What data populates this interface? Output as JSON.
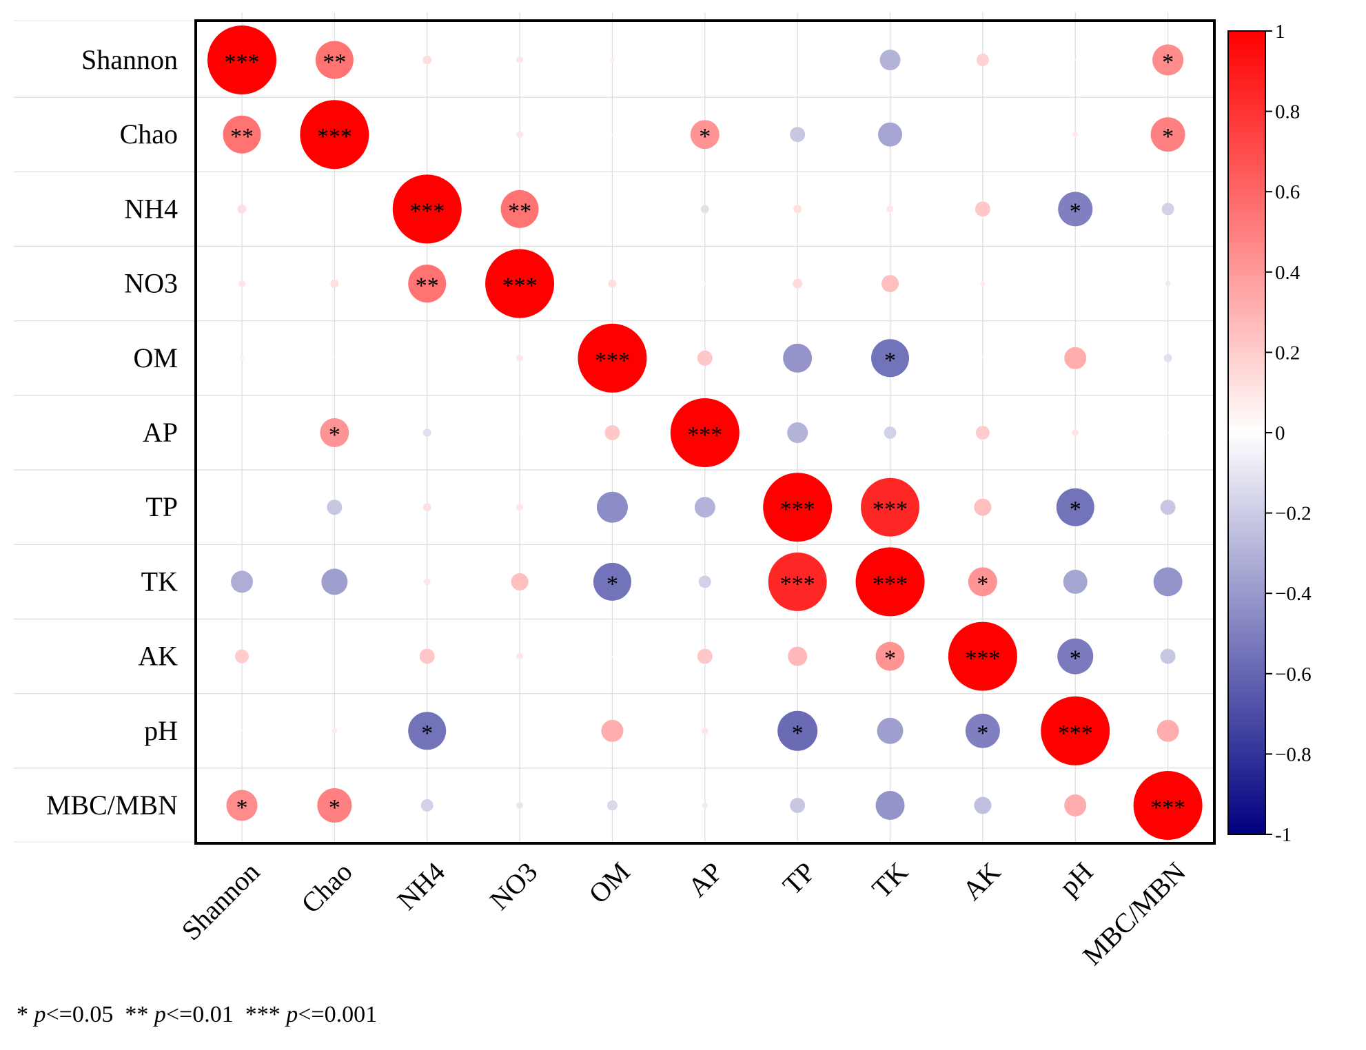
{
  "chart_data": {
    "type": "heatmap",
    "subtype": "correlation-circles",
    "variables": [
      "Shannon",
      "Chao",
      "NH4",
      "NO3",
      "OM",
      "AP",
      "TP",
      "TK",
      "AK",
      "pH",
      "MBC/MBN"
    ],
    "matrix": [
      [
        1.0,
        0.55,
        0.13,
        0.1,
        0.07,
        0.0,
        0.0,
        -0.3,
        0.18,
        0.02,
        0.45
      ],
      [
        0.55,
        1.0,
        0.0,
        0.1,
        0.02,
        0.42,
        -0.22,
        -0.35,
        0.0,
        0.08,
        0.5
      ],
      [
        0.13,
        0.0,
        1.0,
        0.55,
        0.01,
        -0.12,
        0.12,
        0.1,
        0.22,
        -0.5,
        -0.18
      ],
      [
        0.1,
        0.12,
        0.55,
        1.0,
        0.12,
        -0.04,
        0.14,
        0.25,
        0.07,
        -0.01,
        -0.08
      ],
      [
        0.06,
        0.02,
        0.01,
        0.1,
        1.0,
        0.22,
        -0.42,
        -0.55,
        0.02,
        0.32,
        -0.12
      ],
      [
        0.0,
        0.42,
        -0.12,
        -0.04,
        0.22,
        1.0,
        -0.3,
        -0.18,
        0.2,
        0.1,
        -0.04
      ],
      [
        0.0,
        -0.22,
        0.12,
        0.1,
        -0.45,
        -0.3,
        1.0,
        0.85,
        0.25,
        -0.55,
        -0.22
      ],
      [
        -0.32,
        -0.38,
        0.1,
        0.25,
        -0.55,
        -0.18,
        0.85,
        1.0,
        0.42,
        -0.35,
        -0.42
      ],
      [
        0.2,
        0.0,
        0.22,
        0.1,
        0.03,
        0.22,
        0.28,
        0.42,
        1.0,
        -0.52,
        -0.22
      ],
      [
        0.02,
        0.08,
        -0.55,
        0.01,
        0.32,
        0.1,
        -0.58,
        -0.38,
        -0.5,
        1.0,
        0.32
      ],
      [
        0.45,
        0.5,
        -0.18,
        -0.1,
        -0.15,
        -0.08,
        -0.22,
        -0.42,
        -0.25,
        0.32,
        1.0
      ]
    ],
    "significance": [
      [
        "***",
        "**",
        "",
        "",
        "",
        "",
        "",
        "",
        "",
        "",
        "*"
      ],
      [
        "**",
        "***",
        "",
        "",
        "",
        "*",
        "",
        "",
        "",
        "",
        "*"
      ],
      [
        "",
        "",
        "***",
        "**",
        "",
        "",
        "",
        "",
        "",
        "*",
        ""
      ],
      [
        "",
        "",
        "**",
        "***",
        "",
        "",
        "",
        "",
        "",
        "",
        ""
      ],
      [
        "",
        "",
        "",
        "",
        "***",
        "",
        "",
        "*",
        "",
        "",
        ""
      ],
      [
        "",
        "*",
        "",
        "",
        "",
        "***",
        "",
        "",
        "",
        "",
        ""
      ],
      [
        "",
        "",
        "",
        "",
        "",
        "",
        "***",
        "***",
        "",
        "*",
        ""
      ],
      [
        "",
        "",
        "",
        "",
        "*",
        "",
        "***",
        "***",
        "*",
        "",
        ""
      ],
      [
        "",
        "",
        "",
        "",
        "",
        "",
        "",
        "*",
        "***",
        "*",
        ""
      ],
      [
        "",
        "",
        "*",
        "",
        "",
        "",
        "*",
        "",
        "*",
        "***",
        ""
      ],
      [
        "*",
        "*",
        "",
        "",
        "",
        "",
        "",
        "",
        "",
        "",
        "***"
      ]
    ],
    "colorbar": {
      "range": [
        -1,
        1
      ],
      "ticks": [
        "1",
        "0.8",
        "0.6",
        "0.4",
        "0.2",
        "0",
        "−0.2",
        "−0.4",
        "−0.6",
        "−0.8",
        "-1"
      ],
      "colors": {
        "high": "#ff0000",
        "mid": "#ffffff",
        "low": "#000080"
      }
    },
    "legend_note": {
      "s1": "*",
      "s2": "**",
      "s3": "***",
      "p": "p",
      "t1": "<=0.05",
      "t2": "<=0.01",
      "t3": "<=0.001"
    }
  }
}
